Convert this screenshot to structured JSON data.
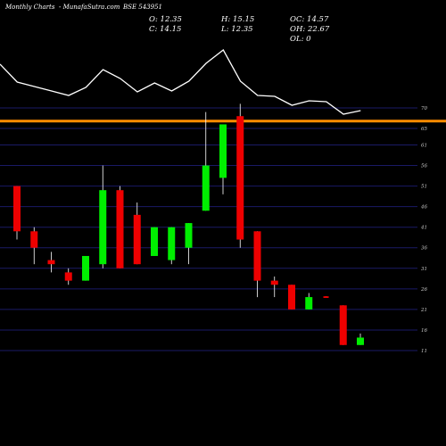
{
  "header": {
    "left": "Monthly Charts",
    "center": "- MunafaSutra.com",
    "symbol": "BSE 543951"
  },
  "ohlc": {
    "open": "O: 12.35",
    "high": "H: 15.15",
    "oc": "OC: 14.57",
    "close": "C: 14.15",
    "low": "L: 12.35",
    "oh": "OH: 22.67",
    "ol": "OL: 0"
  },
  "colors": {
    "background": "#000000",
    "up": "#00ee00",
    "down": "#ee0000",
    "wick": "#ffffff",
    "grid": "#1a1a66",
    "line": "#ffffff",
    "highlight": "#ff8c00"
  },
  "chart_data": {
    "type": "candlestick",
    "y_ticks": [
      70,
      65,
      61,
      56,
      51,
      46,
      41,
      36,
      31,
      26,
      21,
      16,
      11
    ],
    "ylim": [
      8.5,
      82
    ],
    "highlight_level": 66.8,
    "candles": [
      {
        "o": 51,
        "h": 51,
        "c": 40,
        "l": 38
      },
      {
        "o": 40,
        "h": 41,
        "c": 36,
        "l": 32
      },
      {
        "o": 33,
        "h": 35,
        "c": 32,
        "l": 30
      },
      {
        "o": 30,
        "h": 31,
        "c": 28,
        "l": 27
      },
      {
        "o": 28,
        "h": 34,
        "c": 34,
        "l": 28
      },
      {
        "o": 32,
        "h": 56,
        "c": 50,
        "l": 31
      },
      {
        "o": 50,
        "h": 51,
        "c": 31,
        "l": 31
      },
      {
        "o": 44,
        "h": 47,
        "c": 32,
        "l": 32
      },
      {
        "o": 34,
        "h": 41,
        "c": 41,
        "l": 34
      },
      {
        "o": 33,
        "h": 41,
        "c": 41,
        "l": 32
      },
      {
        "o": 36,
        "h": 42,
        "c": 42,
        "l": 32
      },
      {
        "o": 45,
        "h": 69,
        "c": 56,
        "l": 45
      },
      {
        "o": 53,
        "h": 66,
        "c": 66,
        "l": 49
      },
      {
        "o": 68,
        "h": 71,
        "c": 38,
        "l": 36
      },
      {
        "o": 40,
        "h": 40,
        "c": 28,
        "l": 24
      },
      {
        "o": 28,
        "h": 29,
        "c": 27,
        "l": 24
      },
      {
        "o": 27,
        "h": 27,
        "c": 21,
        "l": 21
      },
      {
        "o": 21,
        "h": 25,
        "c": 24,
        "l": 21
      },
      {
        "o": 24.2,
        "h": 24.2,
        "c": 23.8,
        "l": 23.8
      },
      {
        "o": 22,
        "h": 22,
        "c": 12.35,
        "l": 12.35
      },
      {
        "o": 12.35,
        "h": 15.15,
        "c": 14.15,
        "l": 12.35
      }
    ],
    "line_overlay": [
      72,
      92,
      97,
      102,
      107,
      98,
      78,
      88,
      103,
      93,
      102,
      91,
      71,
      56,
      91,
      107,
      108,
      118,
      113,
      114,
      128,
      124
    ]
  }
}
